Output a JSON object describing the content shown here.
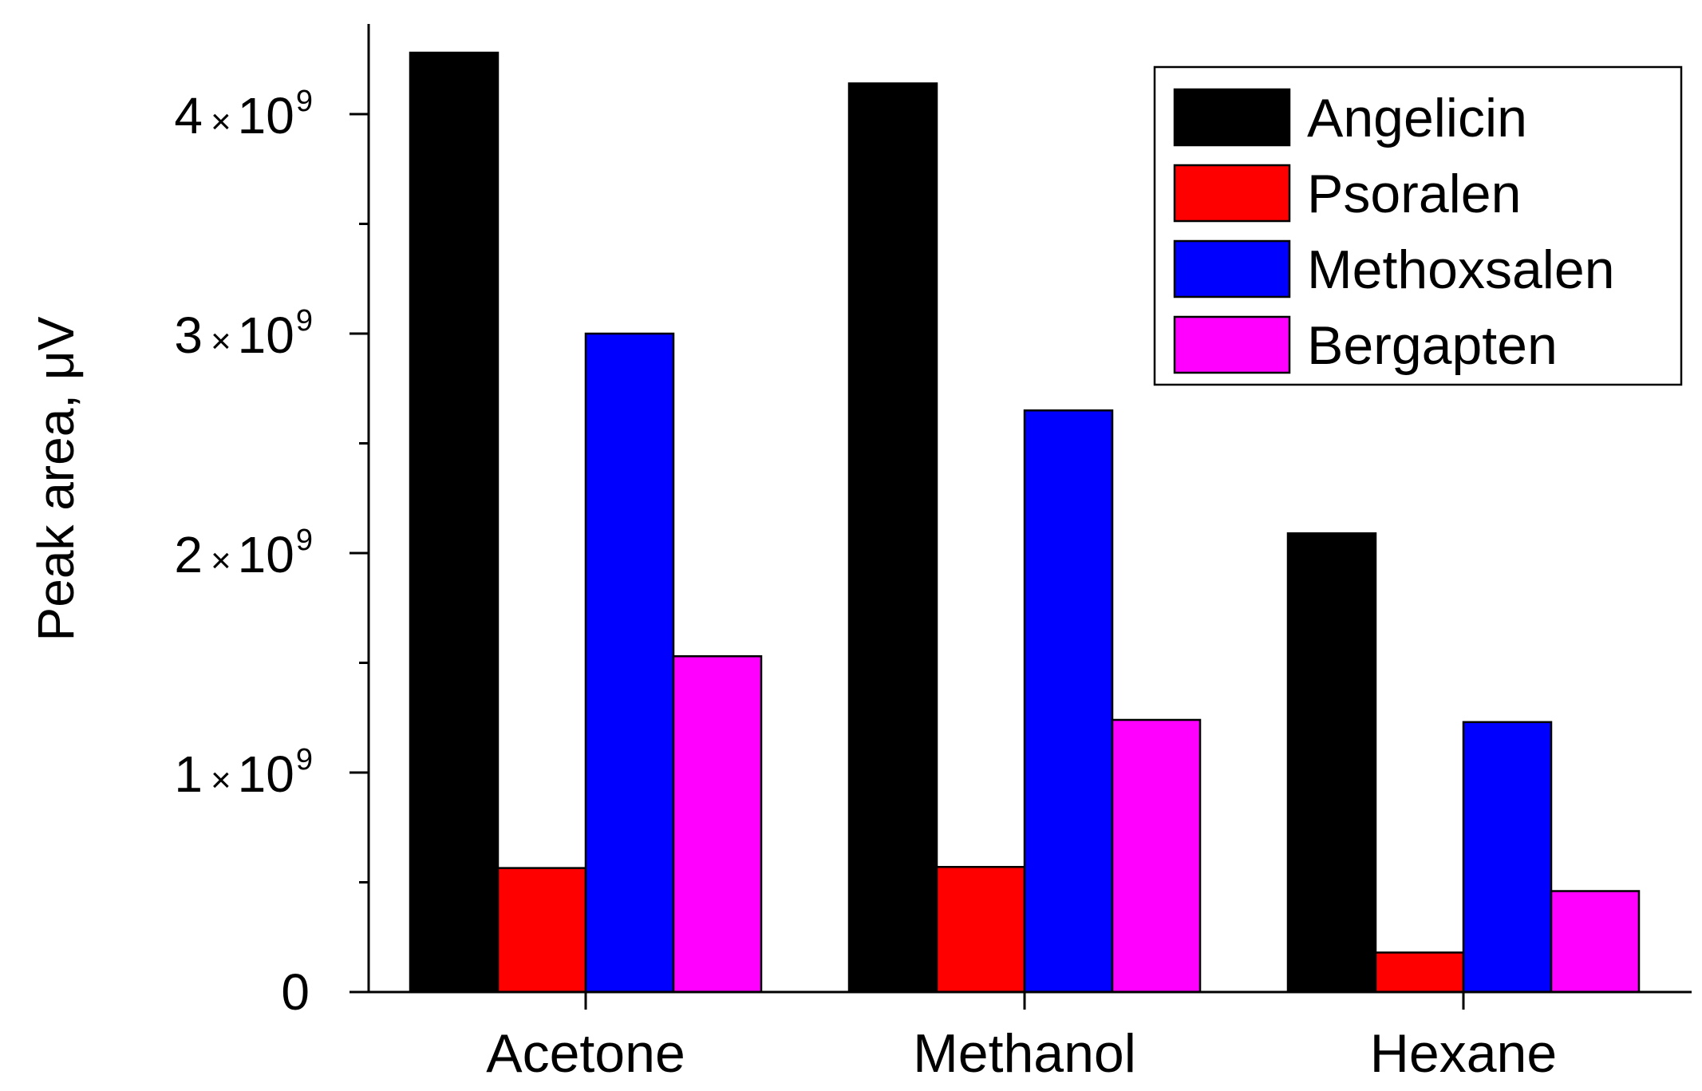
{
  "chart_data": {
    "type": "bar",
    "title": "",
    "xlabel": "",
    "ylabel": "Peak area, μV",
    "categories": [
      "Acetone",
      "Methanol",
      "Hexane"
    ],
    "series": [
      {
        "name": "Angelicin",
        "color": "#000000",
        "values": [
          4280000000,
          4140000000,
          2090000000
        ]
      },
      {
        "name": "Psoralen",
        "color": "#ff0000",
        "values": [
          565000000,
          570000000,
          180000000
        ]
      },
      {
        "name": "Methoxsalen",
        "color": "#0000ff",
        "values": [
          3000000000,
          2650000000,
          1230000000
        ]
      },
      {
        "name": "Bergapten",
        "color": "#ff00ff",
        "values": [
          1530000000,
          1240000000,
          460000000
        ]
      }
    ],
    "ylim": [
      0,
      4400000000
    ],
    "yticks": [
      {
        "value": 0,
        "label": "0"
      },
      {
        "value": 1000000000,
        "mantissa": "1",
        "times": "×",
        "base": "10",
        "exp": "9"
      },
      {
        "value": 2000000000,
        "mantissa": "2",
        "times": "×",
        "base": "10",
        "exp": "9"
      },
      {
        "value": 3000000000,
        "mantissa": "3",
        "times": "×",
        "base": "10",
        "exp": "9"
      },
      {
        "value": 4000000000,
        "mantissa": "4",
        "times": "×",
        "base": "10",
        "exp": "9"
      }
    ],
    "minor_ticks": [
      500000000,
      1500000000,
      2500000000,
      3500000000
    ],
    "grid": false,
    "legend_position": "top-right"
  }
}
